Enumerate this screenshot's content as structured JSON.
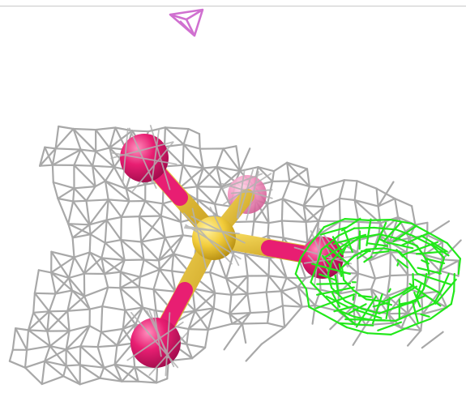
{
  "scene": {
    "description_visible_text": "",
    "colors": {
      "background": "#ffffff",
      "density_mesh": "#a8a8a8",
      "difference_mesh": "#22e81a",
      "small_mesh": "#d070d0",
      "sulfur_atom": "#f2cc3a",
      "oxygen_atom": "#e81e72",
      "oxygen_atom_faded": "#f090b8",
      "top_rule": "#c8c8c8"
    },
    "objects": [
      "grey-density-mesh",
      "green-difference-mesh",
      "magenta-small-mesh",
      "sulfate-ion-model"
    ]
  }
}
